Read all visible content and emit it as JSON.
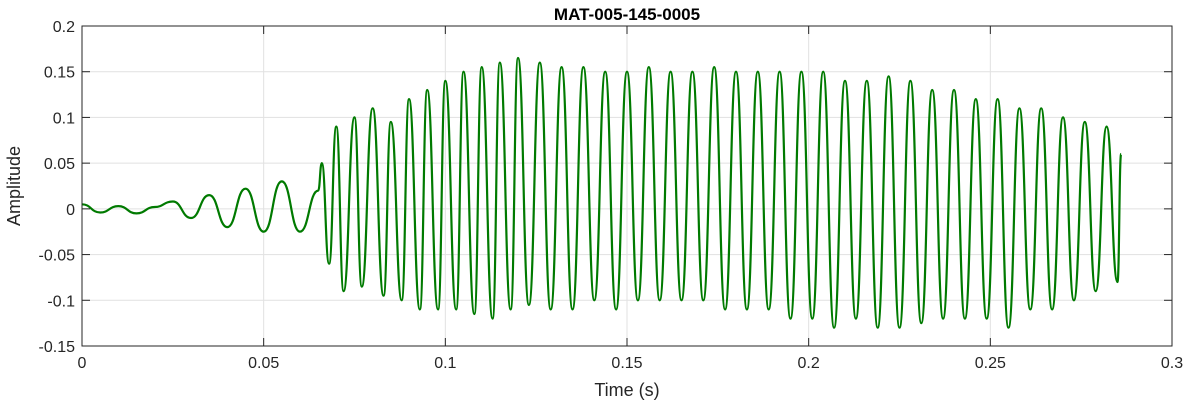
{
  "chart_data": {
    "type": "line",
    "title": "MAT-005-145-0005",
    "xlabel": "Time (s)",
    "ylabel": "Amplitude",
    "xlim": [
      0,
      0.3
    ],
    "ylim": [
      -0.15,
      0.2
    ],
    "xticks": [
      0,
      0.05,
      0.1,
      0.15,
      0.2,
      0.25,
      0.3
    ],
    "xtick_labels": [
      "0",
      "0.05",
      "0.1",
      "0.15",
      "0.2",
      "0.25",
      "0.3"
    ],
    "yticks": [
      -0.15,
      -0.1,
      -0.05,
      0,
      0.05,
      0.1,
      0.15,
      0.2
    ],
    "ytick_labels": [
      "-0.15",
      "-0.1",
      "-0.05",
      "0",
      "0.05",
      "0.1",
      "0.15",
      "0.2"
    ],
    "grid": true,
    "line_color": "#007a00",
    "series": [
      {
        "x": [
          0,
          0.005,
          0.01,
          0.015,
          0.02,
          0.025,
          0.03,
          0.035,
          0.04,
          0.045,
          0.05,
          0.055,
          0.06,
          0.065,
          0.066,
          0.068,
          0.07,
          0.072,
          0.075,
          0.077,
          0.08,
          0.083,
          0.085,
          0.088,
          0.09,
          0.093,
          0.095,
          0.098,
          0.1,
          0.103,
          0.105,
          0.108,
          0.11,
          0.113,
          0.115,
          0.118,
          0.12,
          0.123,
          0.126,
          0.129,
          0.132,
          0.135,
          0.138,
          0.141,
          0.144,
          0.147,
          0.15,
          0.153,
          0.156,
          0.159,
          0.162,
          0.165,
          0.168,
          0.171,
          0.174,
          0.177,
          0.18,
          0.183,
          0.186,
          0.189,
          0.192,
          0.195,
          0.198,
          0.201,
          0.204,
          0.207,
          0.21,
          0.213,
          0.216,
          0.219,
          0.222,
          0.225,
          0.228,
          0.231,
          0.234,
          0.237,
          0.24,
          0.243,
          0.246,
          0.249,
          0.252,
          0.255,
          0.258,
          0.261,
          0.264,
          0.267,
          0.27,
          0.273,
          0.276,
          0.279,
          0.282,
          0.285,
          0.286
        ],
        "y": [
          0.005,
          -0.004,
          0.003,
          -0.005,
          0.002,
          0.008,
          -0.01,
          0.015,
          -0.02,
          0.022,
          -0.025,
          0.03,
          -0.025,
          0.02,
          0.05,
          -0.06,
          0.09,
          -0.09,
          0.1,
          -0.085,
          0.11,
          -0.095,
          0.095,
          -0.1,
          0.12,
          -0.11,
          0.13,
          -0.11,
          0.14,
          -0.11,
          0.15,
          -0.115,
          0.155,
          -0.12,
          0.16,
          -0.11,
          0.165,
          -0.105,
          0.16,
          -0.11,
          0.155,
          -0.11,
          0.155,
          -0.1,
          0.15,
          -0.11,
          0.15,
          -0.1,
          0.155,
          -0.1,
          0.15,
          -0.1,
          0.15,
          -0.1,
          0.155,
          -0.11,
          0.15,
          -0.11,
          0.15,
          -0.11,
          0.15,
          -0.12,
          0.15,
          -0.12,
          0.15,
          -0.13,
          0.14,
          -0.12,
          0.14,
          -0.13,
          0.145,
          -0.13,
          0.14,
          -0.125,
          0.13,
          -0.12,
          0.13,
          -0.12,
          0.12,
          -0.12,
          0.12,
          -0.13,
          0.11,
          -0.11,
          0.11,
          -0.11,
          0.1,
          -0.1,
          0.095,
          -0.09,
          0.09,
          -0.08,
          0.06
        ]
      }
    ]
  }
}
